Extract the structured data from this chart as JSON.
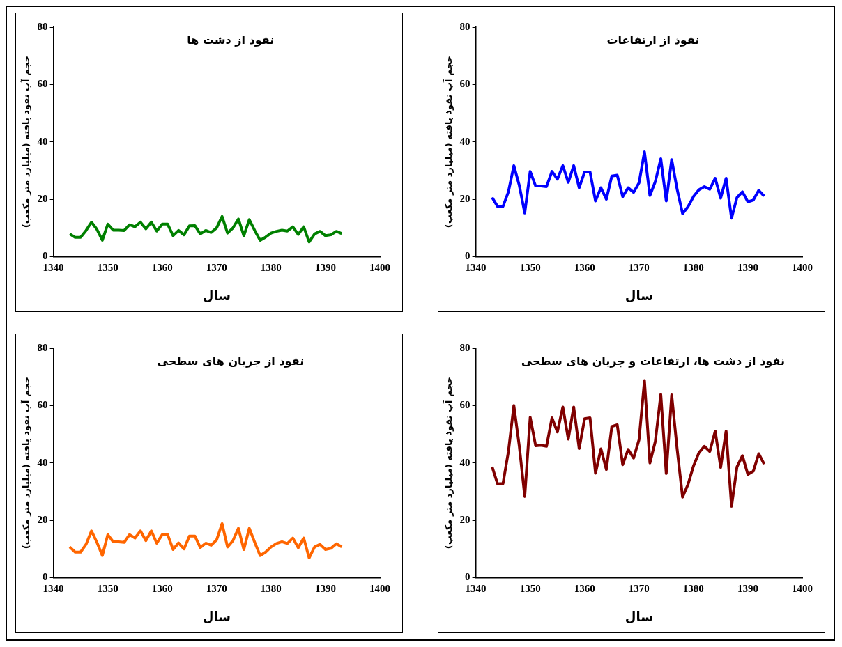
{
  "chart_data": [
    {
      "type": "line",
      "title": "نفوذ از دشت ها",
      "xlabel": "سال",
      "ylabel": "حجم آب نفوذ یافته (میلیارد متر مکعب)",
      "color": "#008000",
      "marker": "none",
      "grid": false,
      "xlim": [
        1340,
        1400
      ],
      "xticks": [
        1340,
        1350,
        1360,
        1370,
        1380,
        1390,
        1400
      ],
      "ylim": [
        0,
        80
      ],
      "yticks": [
        0,
        20,
        40,
        60,
        80
      ],
      "x": [
        1343,
        1344,
        1345,
        1346,
        1347,
        1348,
        1349,
        1350,
        1351,
        1352,
        1353,
        1354,
        1355,
        1356,
        1357,
        1358,
        1359,
        1360,
        1361,
        1362,
        1363,
        1364,
        1365,
        1366,
        1367,
        1368,
        1369,
        1370,
        1371,
        1372,
        1373,
        1374,
        1375,
        1376,
        1377,
        1378,
        1379,
        1380,
        1381,
        1382,
        1383,
        1384,
        1385,
        1386,
        1387,
        1388,
        1389,
        1390,
        1391,
        1392,
        1393
      ],
      "values": [
        7.9,
        6.7,
        6.7,
        9.1,
        12,
        9.5,
        5.7,
        11.3,
        9.2,
        9.2,
        9.1,
        11.1,
        10.4,
        12,
        9.7,
        12,
        8.9,
        11.3,
        11.3,
        7.3,
        9.1,
        7.6,
        10.7,
        10.8,
        7.9,
        9.1,
        8.4,
        10,
        14,
        8.2,
        10,
        13.1,
        7.3,
        12.9,
        9.1,
        5.7,
        6.8,
        8.2,
        8.8,
        9.2,
        8.9,
        10.4,
        7.7,
        10.4,
        5.1,
        7.9,
        8.8,
        7.3,
        7.6,
        8.8,
        8
      ]
    },
    {
      "type": "line",
      "title": "نفوذ از ارتفاعات",
      "xlabel": "سال",
      "ylabel": "حجم آب نفوذ یافته (میلیارد متر مکعب)",
      "color": "#0000ff",
      "marker": "none",
      "grid": false,
      "xlim": [
        1340,
        1400
      ],
      "xticks": [
        1340,
        1350,
        1360,
        1370,
        1380,
        1390,
        1400
      ],
      "ylim": [
        0,
        80
      ],
      "yticks": [
        0,
        20,
        40,
        60,
        80
      ],
      "x": [
        1343,
        1344,
        1345,
        1346,
        1347,
        1348,
        1349,
        1350,
        1351,
        1352,
        1353,
        1354,
        1355,
        1356,
        1357,
        1358,
        1359,
        1360,
        1361,
        1362,
        1363,
        1364,
        1365,
        1366,
        1367,
        1368,
        1369,
        1370,
        1371,
        1372,
        1373,
        1374,
        1375,
        1376,
        1377,
        1378,
        1379,
        1380,
        1381,
        1382,
        1383,
        1384,
        1385,
        1386,
        1387,
        1388,
        1389,
        1390,
        1391,
        1392,
        1393
      ],
      "values": [
        20.6,
        17.5,
        17.5,
        22.6,
        31.7,
        24.8,
        15.2,
        29.7,
        24.6,
        24.6,
        24.4,
        29.7,
        27,
        31.7,
        25.9,
        31.7,
        24,
        29.5,
        29.5,
        19.4,
        24,
        20,
        28.1,
        28.4,
        20.9,
        24,
        22.4,
        25.7,
        36.5,
        21.3,
        26.2,
        34.1,
        19.4,
        33.8,
        23.5,
        15,
        17.4,
        20.9,
        23.3,
        24.4,
        23.5,
        27.3,
        20.4,
        27.3,
        13.4,
        20.6,
        22.6,
        19.1,
        19.7,
        23.1,
        21.1
      ]
    },
    {
      "type": "line",
      "title": "نفوذ از جریان های سطحی",
      "xlabel": "سال",
      "ylabel": "حجم آب نفوذ یافته (میلیارد متر مکعب)",
      "color": "#ff6600",
      "marker": "none",
      "grid": false,
      "xlim": [
        1340,
        1400
      ],
      "xticks": [
        1340,
        1350,
        1360,
        1370,
        1380,
        1390,
        1400
      ],
      "ylim": [
        0,
        80
      ],
      "yticks": [
        0,
        20,
        40,
        60,
        80
      ],
      "x": [
        1343,
        1344,
        1345,
        1346,
        1347,
        1348,
        1349,
        1350,
        1351,
        1352,
        1353,
        1354,
        1355,
        1356,
        1357,
        1358,
        1359,
        1360,
        1361,
        1362,
        1363,
        1364,
        1365,
        1366,
        1367,
        1368,
        1369,
        1370,
        1371,
        1372,
        1373,
        1374,
        1375,
        1376,
        1377,
        1378,
        1379,
        1380,
        1381,
        1382,
        1383,
        1384,
        1385,
        1386,
        1387,
        1388,
        1389,
        1390,
        1391,
        1392,
        1393
      ],
      "values": [
        10.7,
        8.9,
        8.9,
        11.6,
        16.3,
        12.3,
        7.7,
        15,
        12.5,
        12.5,
        12.3,
        15,
        13.8,
        16.3,
        12.9,
        16.3,
        12,
        15,
        15,
        9.8,
        12.1,
        10,
        14.5,
        14.5,
        10.5,
        12,
        11.3,
        13.2,
        18.8,
        10.7,
        12.9,
        17.2,
        9.8,
        17.2,
        12.3,
        7.7,
        8.9,
        10.7,
        11.9,
        12.5,
        11.9,
        13.8,
        10.4,
        13.8,
        6.9,
        10.7,
        11.6,
        9.8,
        10.2,
        11.8,
        10.7
      ]
    },
    {
      "type": "line",
      "title": "نفوذ از دشت ها، ارتفاعات و جریان های سطحی",
      "xlabel": "سال",
      "ylabel": "حجم آب نفوذ یافته (میلیارد متر مکعب)",
      "color": "#800000",
      "marker": "none",
      "grid": false,
      "xlim": [
        1340,
        1400
      ],
      "xticks": [
        1340,
        1350,
        1360,
        1370,
        1380,
        1390,
        1400
      ],
      "ylim": [
        0,
        80
      ],
      "yticks": [
        0,
        20,
        40,
        60,
        80
      ],
      "x": [
        1343,
        1344,
        1345,
        1346,
        1347,
        1348,
        1349,
        1350,
        1351,
        1352,
        1353,
        1354,
        1355,
        1356,
        1357,
        1358,
        1359,
        1360,
        1361,
        1362,
        1363,
        1364,
        1365,
        1366,
        1367,
        1368,
        1369,
        1370,
        1371,
        1372,
        1373,
        1374,
        1375,
        1376,
        1377,
        1378,
        1379,
        1380,
        1381,
        1382,
        1383,
        1384,
        1385,
        1386,
        1387,
        1388,
        1389,
        1390,
        1391,
        1392,
        1393
      ],
      "values": [
        38.7,
        32.7,
        32.8,
        44,
        60,
        45.8,
        28.3,
        55.9,
        46,
        46.2,
        45.8,
        55.7,
        50.8,
        59.5,
        48.3,
        59.5,
        45,
        55.4,
        55.7,
        36.4,
        44.9,
        37.7,
        52.7,
        53.3,
        39.4,
        44.7,
        41.7,
        48.1,
        68.7,
        40,
        47.6,
        63.9,
        36.3,
        63.7,
        44.9,
        28.1,
        32.5,
        38.9,
        43.5,
        45.8,
        44,
        51.1,
        38.4,
        51.1,
        24.9,
        38.6,
        42.5,
        36,
        37.1,
        43.2,
        39.6
      ]
    }
  ]
}
